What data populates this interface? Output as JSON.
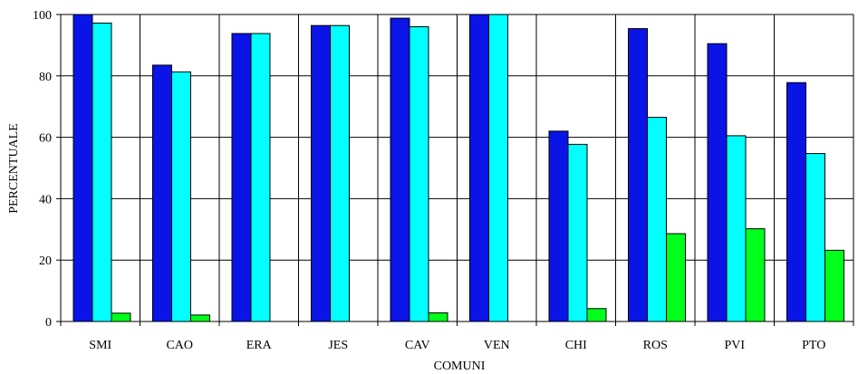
{
  "chart_data": {
    "type": "bar",
    "categories": [
      "SMI",
      "CAO",
      "ERA",
      "JES",
      "CAV",
      "VEN",
      "CHI",
      "ROS",
      "PVI",
      "PTO"
    ],
    "series": [
      {
        "values": [
          100,
          83.5,
          93.8,
          96.4,
          98.8,
          100,
          62,
          95.4,
          90.5,
          77.8
        ],
        "color": "#0a14e6"
      },
      {
        "values": [
          97.2,
          81.3,
          93.8,
          96.4,
          96,
          100,
          57.7,
          66.5,
          60.5,
          54.7
        ],
        "color": "#00ffff"
      },
      {
        "values": [
          2.7,
          2.1,
          0,
          0,
          2.8,
          0,
          4.2,
          28.6,
          30.2,
          23.2
        ],
        "color": "#00ff1a"
      }
    ],
    "xlabel": "COMUNI",
    "ylabel": "PERCENTUALE",
    "ylim": [
      0,
      100
    ],
    "yticks": [
      "0",
      "20",
      "40",
      "60",
      "80",
      "100"
    ],
    "grid": true,
    "legend": "none"
  }
}
